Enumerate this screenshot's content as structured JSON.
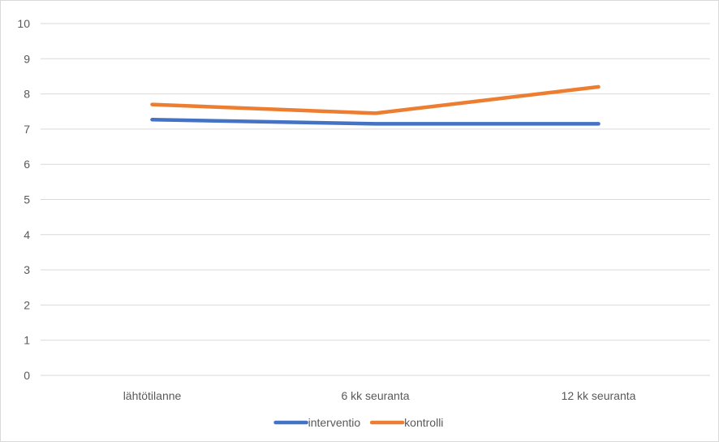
{
  "chart_data": {
    "type": "line",
    "categories": [
      "lähtötilanne",
      "6 kk seuranta",
      "12 kk seuranta"
    ],
    "series": [
      {
        "name": "interventio",
        "values": [
          7.27,
          7.15,
          7.15
        ],
        "color": "#4472c4"
      },
      {
        "name": "kontrolli",
        "values": [
          7.7,
          7.45,
          8.2
        ],
        "color": "#ed7d31"
      }
    ],
    "ylim": [
      0,
      10
    ],
    "yticks": [
      "0",
      "1",
      "2",
      "3",
      "4",
      "5",
      "6",
      "7",
      "8",
      "9",
      "10"
    ],
    "grid": true,
    "gridColor": "#d9d9d9",
    "legend": "bottom"
  }
}
